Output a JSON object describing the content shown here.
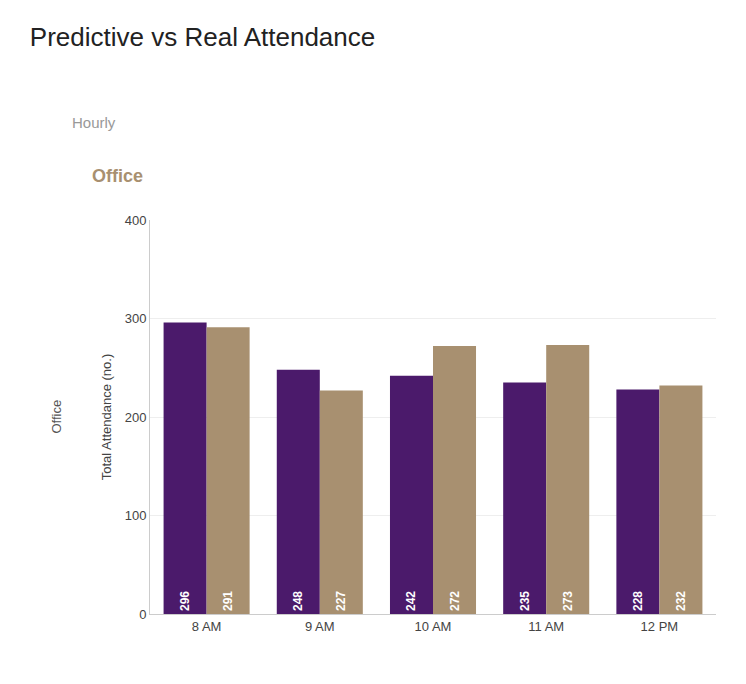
{
  "chart_data": {
    "type": "bar",
    "title": "Predictive vs Real Attendance",
    "subtitle": "Hourly",
    "annotations": [
      {
        "text": "Office",
        "color": "#A89070"
      },
      {
        "text": "Office"
      }
    ],
    "ylabel": "Total Attendance (no.)",
    "categories": [
      "8 AM",
      "9 AM",
      "10 AM",
      "11 AM",
      "12 PM"
    ],
    "series": [
      {
        "color": "#4B1A6B",
        "values": [
          296,
          248,
          242,
          235,
          228
        ]
      },
      {
        "color": "#A89070",
        "values": [
          291,
          227,
          272,
          273,
          232
        ]
      }
    ],
    "ylim": [
      0,
      400
    ],
    "yticks": [
      0,
      100,
      200,
      300,
      400
    ],
    "grid": true,
    "data_labels": true
  }
}
